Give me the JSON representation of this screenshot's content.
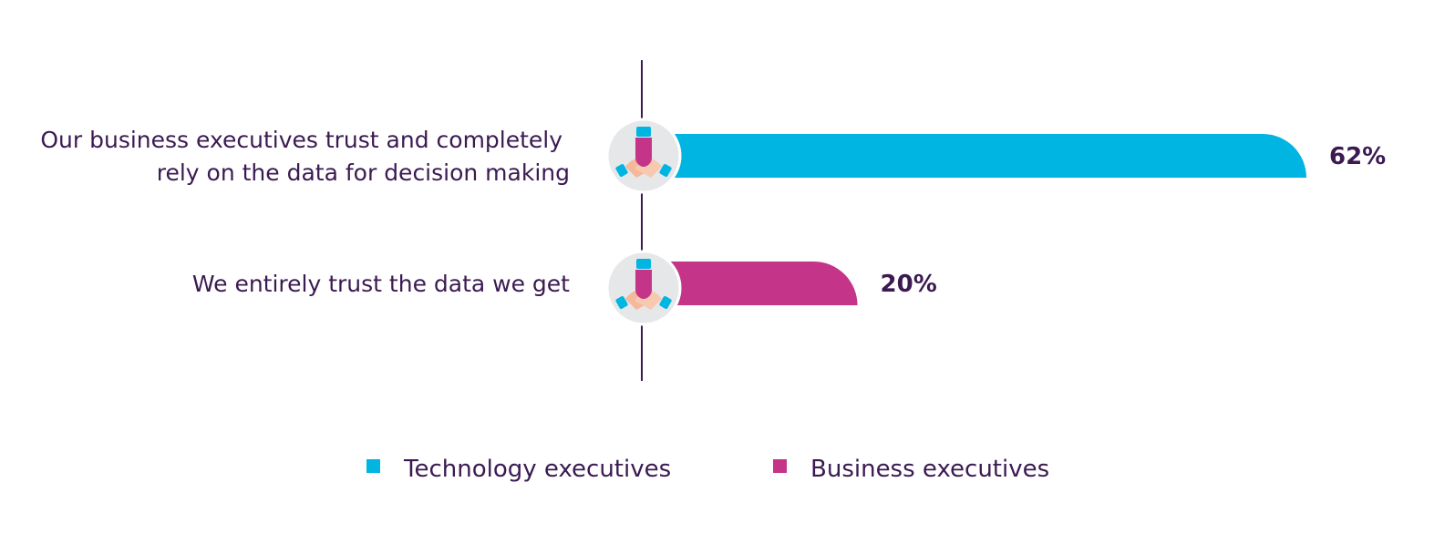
{
  "chart_data": {
    "type": "bar",
    "orientation": "horizontal",
    "categories": [
      [
        "Our business executives trust and completely",
        "rely on the data for decision making"
      ],
      [
        "We entirely trust the data we get"
      ]
    ],
    "series": [
      {
        "name": "Technology executives",
        "color": "#00b5e2",
        "values": [
          62,
          null
        ]
      },
      {
        "name": "Business executives",
        "color": "#c4358a",
        "values": [
          null,
          20
        ]
      }
    ],
    "value_labels": [
      "62%",
      "20%"
    ],
    "unit": "%",
    "xlim": [
      0,
      62
    ],
    "legend_position": "bottom-center",
    "grid": false,
    "icon": "handshake-icon"
  }
}
